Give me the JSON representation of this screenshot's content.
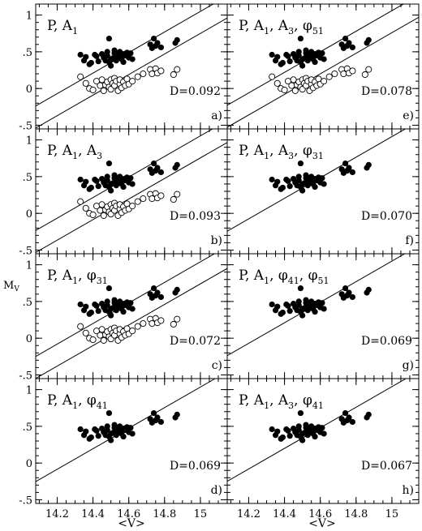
{
  "chart_data": {
    "type": "scatter",
    "title": "",
    "shared_x": {
      "label": "<V>",
      "lim": [
        14.08,
        15.15
      ],
      "ticks": [
        14.2,
        14.4,
        14.6,
        14.8,
        15
      ],
      "tick_labels": [
        "14.2",
        "14.4",
        "14.6",
        "14.8",
        "15"
      ]
    },
    "shared_y": {
      "label": "M",
      "label_sub": "V",
      "lim": [
        -0.55,
        1.15
      ],
      "ticks": [
        -0.5,
        0,
        0.5,
        1
      ],
      "tick_labels": [
        "-.5",
        "0",
        ".5",
        "1"
      ]
    },
    "panels": [
      {
        "id": "a",
        "label": "P, A",
        "label_parts": [
          [
            "P, A",
            ""
          ],
          [
            "1",
            "sub"
          ]
        ],
        "dval": "D=0.092",
        "tag": "a)",
        "two_groups": true,
        "line_offset": 0
      },
      {
        "id": "b",
        "label": "P, A1, A3",
        "label_parts": [
          [
            "P, A",
            ""
          ],
          [
            "1",
            "sub"
          ],
          [
            ", A",
            ""
          ],
          [
            "3",
            "sub"
          ]
        ],
        "dval": "D=0.093",
        "tag": "b)",
        "two_groups": true,
        "line_offset": 0.005
      },
      {
        "id": "c",
        "label": "P, A1, φ31",
        "label_parts": [
          [
            "P, A",
            ""
          ],
          [
            "1",
            "sub"
          ],
          [
            ", φ",
            ""
          ],
          [
            "31",
            "sub"
          ]
        ],
        "dval": "D=0.072",
        "tag": "c)",
        "two_groups": true,
        "line_offset": -0.01
      },
      {
        "id": "d",
        "label": "P, A1, φ41",
        "label_parts": [
          [
            "P, A",
            ""
          ],
          [
            "1",
            "sub"
          ],
          [
            ", φ",
            ""
          ],
          [
            "41",
            "sub"
          ]
        ],
        "dval": "D=0.069",
        "tag": "d)",
        "two_groups": false,
        "line_offset": -0.015
      },
      {
        "id": "e",
        "label": "P, A1, A3, φ51",
        "label_parts": [
          [
            "P, A",
            ""
          ],
          [
            "1",
            "sub"
          ],
          [
            ", A",
            ""
          ],
          [
            "3",
            "sub"
          ],
          [
            ", φ",
            ""
          ],
          [
            "51",
            "sub"
          ]
        ],
        "dval": "D=0.078",
        "tag": "e)",
        "two_groups": true,
        "line_offset": 0.01
      },
      {
        "id": "f",
        "label": "P, A1, A3, φ31",
        "label_parts": [
          [
            "P, A",
            ""
          ],
          [
            "1",
            "sub"
          ],
          [
            ", A",
            ""
          ],
          [
            "3",
            "sub"
          ],
          [
            ", φ",
            ""
          ],
          [
            "31",
            "sub"
          ]
        ],
        "dval": "D=0.070",
        "tag": "f)",
        "two_groups": false,
        "line_offset": -0.005
      },
      {
        "id": "g",
        "label": "P, A1, φ41, φ51",
        "label_parts": [
          [
            "P, A",
            ""
          ],
          [
            "1",
            "sub"
          ],
          [
            ", φ",
            ""
          ],
          [
            "41",
            "sub"
          ],
          [
            ", φ",
            ""
          ],
          [
            "51",
            "sub"
          ]
        ],
        "dval": "D=0.069",
        "tag": "g)",
        "two_groups": false,
        "line_offset": 0
      },
      {
        "id": "h",
        "label": "P, A1, A3, φ41",
        "label_parts": [
          [
            "P, A",
            ""
          ],
          [
            "1",
            "sub"
          ],
          [
            ", A",
            ""
          ],
          [
            "3",
            "sub"
          ],
          [
            ", φ",
            ""
          ],
          [
            "41",
            "sub"
          ]
        ],
        "dval": "D=0.067",
        "tag": "h)",
        "two_groups": false,
        "line_offset": -0.01
      }
    ],
    "fit_line": {
      "slope": 1.4,
      "x0": 14.6,
      "y_upper": 0.49,
      "y_lower": 0.19
    },
    "filled_points": [
      [
        14.33,
        0.46
      ],
      [
        14.35,
        0.38
      ],
      [
        14.36,
        0.43
      ],
      [
        14.38,
        0.33
      ],
      [
        14.39,
        0.35
      ],
      [
        14.41,
        0.46
      ],
      [
        14.42,
        0.44
      ],
      [
        14.43,
        0.37
      ],
      [
        14.45,
        0.47
      ],
      [
        14.46,
        0.42
      ],
      [
        14.47,
        0.38
      ],
      [
        14.48,
        0.5
      ],
      [
        14.48,
        0.45
      ],
      [
        14.49,
        0.68
      ],
      [
        14.49,
        0.36
      ],
      [
        14.5,
        0.4
      ],
      [
        14.5,
        0.31
      ],
      [
        14.51,
        0.41
      ],
      [
        14.52,
        0.52
      ],
      [
        14.52,
        0.48
      ],
      [
        14.53,
        0.44
      ],
      [
        14.53,
        0.38
      ],
      [
        14.54,
        0.46
      ],
      [
        14.55,
        0.43
      ],
      [
        14.55,
        0.5
      ],
      [
        14.56,
        0.4
      ],
      [
        14.57,
        0.47
      ],
      [
        14.57,
        0.36
      ],
      [
        14.58,
        0.45
      ],
      [
        14.59,
        0.49
      ],
      [
        14.6,
        0.42
      ],
      [
        14.61,
        0.48
      ],
      [
        14.62,
        0.4
      ],
      [
        14.72,
        0.6
      ],
      [
        14.73,
        0.55
      ],
      [
        14.74,
        0.68
      ],
      [
        14.75,
        0.58
      ],
      [
        14.76,
        0.62
      ],
      [
        14.78,
        0.56
      ],
      [
        14.86,
        0.62
      ],
      [
        14.87,
        0.66
      ]
    ],
    "open_points": [
      [
        14.33,
        0.16
      ],
      [
        14.36,
        0.07
      ],
      [
        14.38,
        0.0
      ],
      [
        14.4,
        -0.02
      ],
      [
        14.42,
        0.1
      ],
      [
        14.44,
        0.04
      ],
      [
        14.45,
        0.12
      ],
      [
        14.46,
        -0.03
      ],
      [
        14.47,
        0.05
      ],
      [
        14.48,
        0.09
      ],
      [
        14.49,
        0.02
      ],
      [
        14.5,
        0.12
      ],
      [
        14.5,
        -0.01
      ],
      [
        14.51,
        0.07
      ],
      [
        14.52,
        0.14
      ],
      [
        14.52,
        0.04
      ],
      [
        14.53,
        0.1
      ],
      [
        14.54,
        -0.03
      ],
      [
        14.55,
        0.06
      ],
      [
        14.55,
        0.12
      ],
      [
        14.56,
        0.01
      ],
      [
        14.57,
        0.09
      ],
      [
        14.58,
        0.04
      ],
      [
        14.59,
        0.13
      ],
      [
        14.6,
        0.06
      ],
      [
        14.62,
        0.1
      ],
      [
        14.65,
        0.16
      ],
      [
        14.68,
        0.2
      ],
      [
        14.72,
        0.26
      ],
      [
        14.73,
        0.2
      ],
      [
        14.75,
        0.27
      ],
      [
        14.76,
        0.21
      ],
      [
        14.78,
        0.24
      ],
      [
        14.85,
        0.19
      ],
      [
        14.87,
        0.26
      ]
    ]
  }
}
